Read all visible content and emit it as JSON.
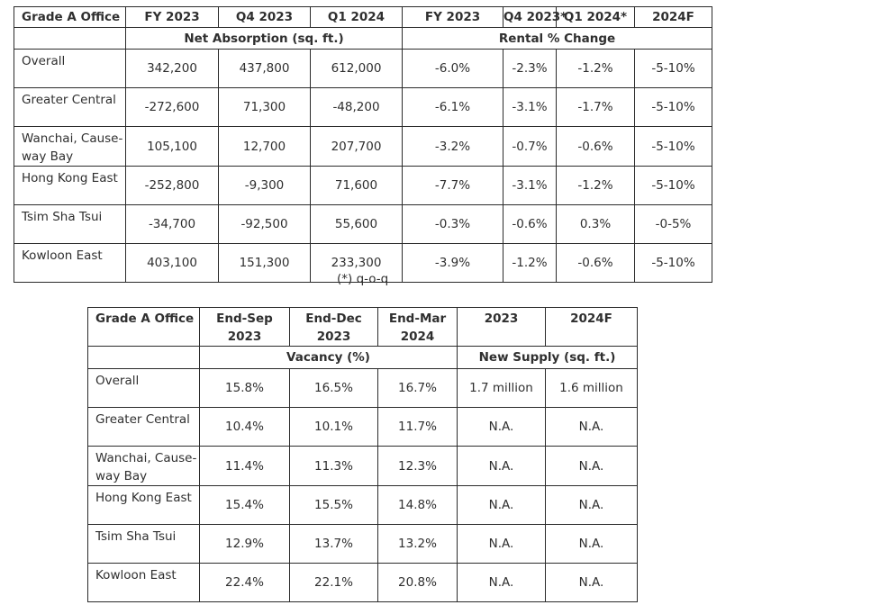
{
  "table1": {
    "header": [
      "Grade A Office",
      "FY 2023",
      "Q4 2023",
      "Q1 2024",
      "FY 2023",
      "Q4 2023*",
      "Q1 2024*",
      "2024F"
    ],
    "group_left": "Net Absorption (sq. ft.)",
    "group_right": "Rental % Change",
    "rows": [
      {
        "name": "Overall",
        "values": [
          "342,200",
          "437,800",
          "612,000",
          "-6.0%",
          "-2.3%",
          "-1.2%",
          "-5-10%"
        ]
      },
      {
        "name": "Greater Central",
        "values": [
          "-272,600",
          "71,300",
          "-48,200",
          "-6.1%",
          "-3.1%",
          "-1.7%",
          "-5-10%"
        ]
      },
      {
        "name": "Wanchai, Cause-way Bay",
        "values": [
          "105,100",
          "12,700",
          "207,700",
          "-3.2%",
          "-0.7%",
          "-0.6%",
          "-5-10%"
        ]
      },
      {
        "name": "Hong Kong East",
        "values": [
          "-252,800",
          "-9,300",
          "71,600",
          "-7.7%",
          "-3.1%",
          "-1.2%",
          "-5-10%"
        ]
      },
      {
        "name": "Tsim Sha Tsui",
        "values": [
          "-34,700",
          "-92,500",
          "55,600",
          "-0.3%",
          "-0.6%",
          "0.3%",
          "-0-5%"
        ]
      },
      {
        "name": "Kowloon East",
        "values": [
          "403,100",
          "151,300",
          "233,300",
          "-3.9%",
          "-1.2%",
          "-0.6%",
          "-5-10%"
        ]
      }
    ]
  },
  "footnote": "(*) q-o-q",
  "table2": {
    "header": [
      "Grade A Office",
      "End-Sep 2023",
      "End-Dec 2023",
      "End-Mar 2024",
      "2023",
      "2024F"
    ],
    "group_left": "Vacancy (%)",
    "group_right": "New Supply (sq. ft.)",
    "rows": [
      {
        "name": "Overall",
        "values": [
          "15.8%",
          "16.5%",
          "16.7%",
          "1.7 million",
          "1.6 million"
        ]
      },
      {
        "name": "Greater Central",
        "values": [
          "10.4%",
          "10.1%",
          "11.7%",
          "N.A.",
          "N.A."
        ]
      },
      {
        "name": "Wanchai, Cause-way Bay",
        "values": [
          "11.4%",
          "11.3%",
          "12.3%",
          "N.A.",
          "N.A."
        ]
      },
      {
        "name": "Hong Kong East",
        "values": [
          "15.4%",
          "15.5%",
          "14.8%",
          "N.A.",
          "N.A."
        ]
      },
      {
        "name": "Tsim Sha Tsui",
        "values": [
          "12.9%",
          "13.7%",
          "13.2%",
          "N.A.",
          "N.A."
        ]
      },
      {
        "name": "Kowloon East",
        "values": [
          "22.4%",
          "22.1%",
          "20.8%",
          "N.A.",
          "N.A."
        ]
      }
    ]
  }
}
